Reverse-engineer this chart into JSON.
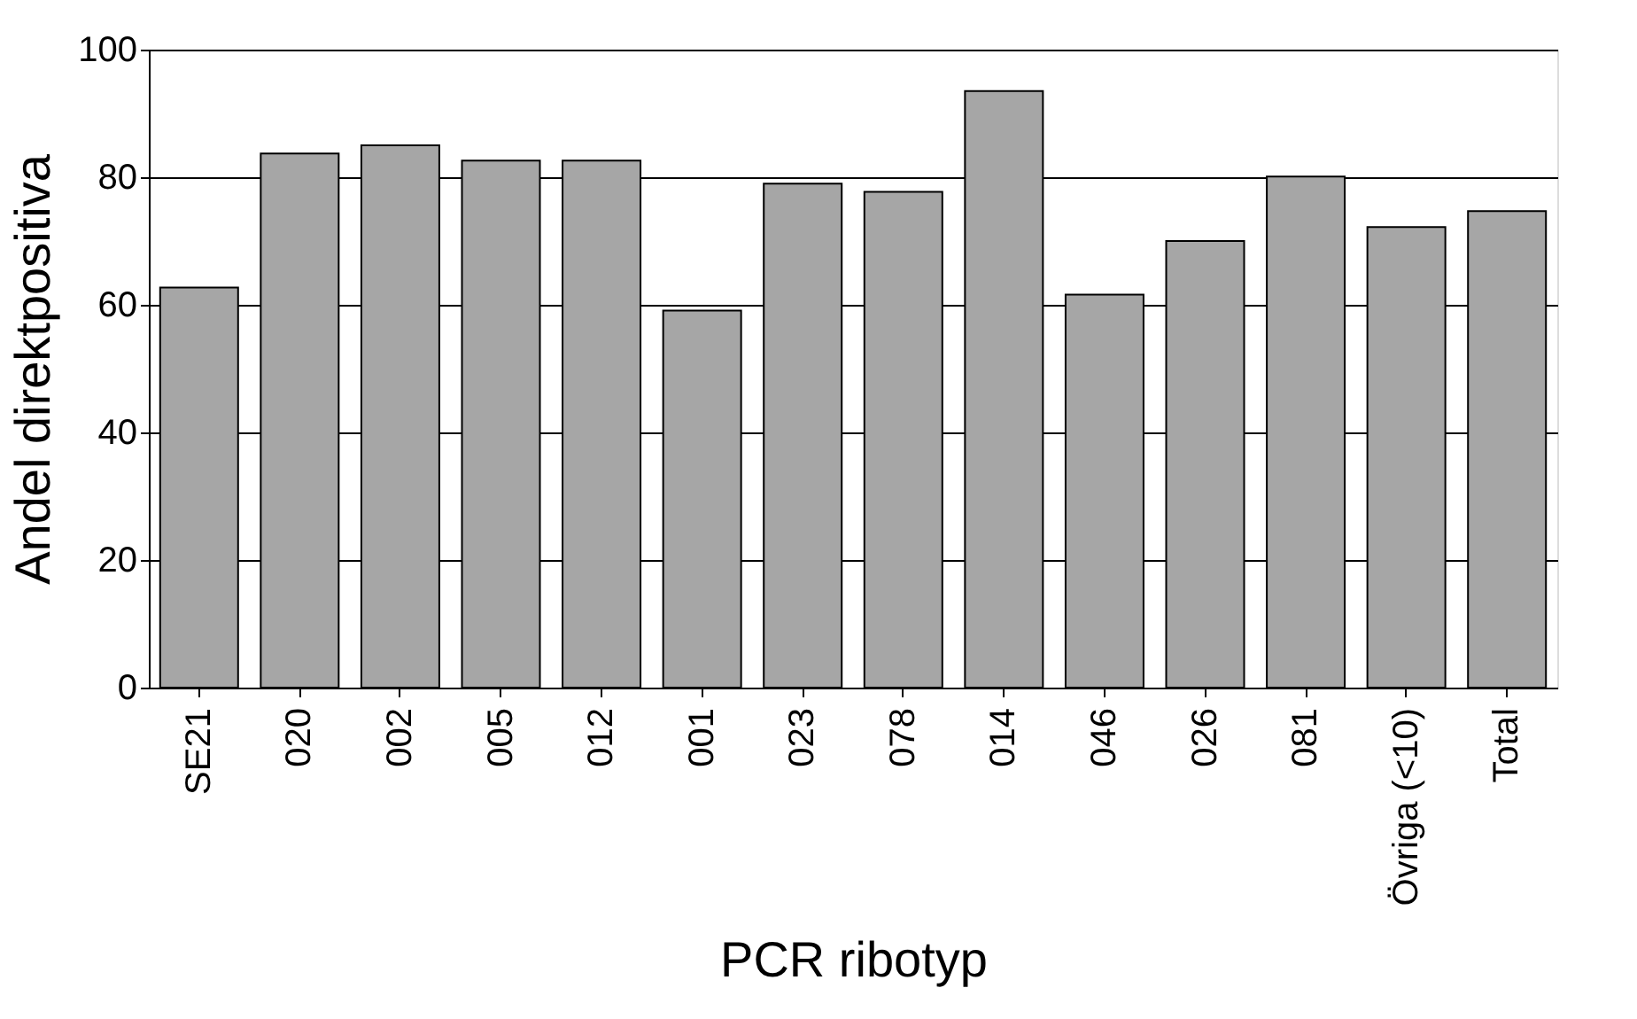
{
  "chart_data": {
    "type": "bar",
    "xlabel": "PCR ribotyp",
    "ylabel": "Andel direktpositiva",
    "categories": [
      "SE21",
      "020",
      "002",
      "005",
      "012",
      "001",
      "023",
      "078",
      "014",
      "046",
      "026",
      "081",
      "Övriga (<10)",
      "Total"
    ],
    "values": [
      62.7,
      83.7,
      85,
      82.6,
      82.6,
      59.1,
      79,
      77.7,
      93.5,
      61.6,
      70,
      80.1,
      72.2,
      74.7
    ],
    "color": "#a6a6a6",
    "ylim": [
      0,
      100
    ],
    "yticks": [
      0,
      20,
      40,
      60,
      80,
      100
    ],
    "grid": "y"
  }
}
